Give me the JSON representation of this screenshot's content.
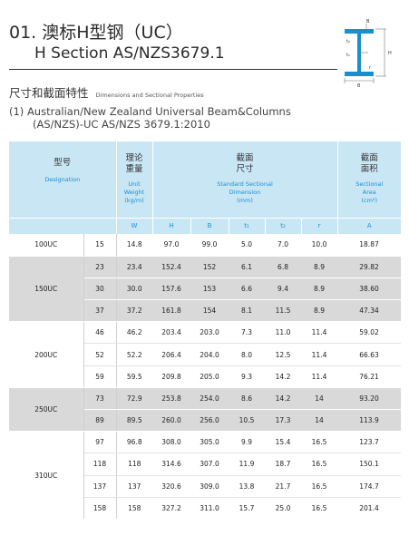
{
  "title": {
    "line1": "01. 澳标H型钢（UC）",
    "line2": "H Section   AS/NZS3679.1"
  },
  "diagram": {
    "labels": [
      "B",
      "t₂",
      "t₁",
      "H",
      "r",
      "B"
    ]
  },
  "subheading": {
    "zh": "尺寸和截面特性",
    "en": "Dimensions and Sectional Properties"
  },
  "standard": {
    "line1": "(1) Australian/New Zealand Universal Beam&Columns",
    "line2": "(AS/NZS)-UC  AS/NZS 3679.1:2010"
  },
  "table": {
    "headers": {
      "designation": {
        "zh": "型号",
        "en": "Designation"
      },
      "weight": {
        "zh1": "理论",
        "zh2": "重量",
        "en1": "Unit",
        "en2": "Weight",
        "en3": "(kg/m)"
      },
      "dimension": {
        "zh1": "截面",
        "zh2": "尺寸",
        "en1": "Standard Sectional",
        "en2": "Dimension",
        "en3": "(mm)"
      },
      "area": {
        "zh1": "截面",
        "zh2": "面积",
        "en1": "Sectional",
        "en2": "Area",
        "en3": "(cm²)"
      }
    },
    "units": [
      "W",
      "H",
      "B",
      "t₁",
      "t₂",
      "r",
      "A"
    ],
    "groups": [
      {
        "name": "100UC",
        "shade": "white",
        "rows": [
          [
            "15",
            "14.8",
            "97.0",
            "99.0",
            "5.0",
            "7.0",
            "10.0",
            "18.87"
          ]
        ]
      },
      {
        "name": "150UC",
        "shade": "grey",
        "rows": [
          [
            "23",
            "23.4",
            "152.4",
            "152",
            "6.1",
            "6.8",
            "8.9",
            "29.82"
          ],
          [
            "30",
            "30.0",
            "157.6",
            "153",
            "6.6",
            "9.4",
            "8.9",
            "38.60"
          ],
          [
            "37",
            "37.2",
            "161.8",
            "154",
            "8.1",
            "11.5",
            "8.9",
            "47.34"
          ]
        ]
      },
      {
        "name": "200UC",
        "shade": "white",
        "rows": [
          [
            "46",
            "46.2",
            "203.4",
            "203.0",
            "7.3",
            "11.0",
            "11.4",
            "59.02"
          ],
          [
            "52",
            "52.2",
            "206.4",
            "204.0",
            "8.0",
            "12.5",
            "11.4",
            "66.63"
          ],
          [
            "59",
            "59.5",
            "209.8",
            "205.0",
            "9.3",
            "14.2",
            "11.4",
            "76.21"
          ]
        ]
      },
      {
        "name": "250UC",
        "shade": "grey",
        "rows": [
          [
            "73",
            "72.9",
            "253.8",
            "254.0",
            "8.6",
            "14.2",
            "14",
            "93.20"
          ],
          [
            "89",
            "89.5",
            "260.0",
            "256.0",
            "10.5",
            "17.3",
            "14",
            "113.9"
          ]
        ]
      },
      {
        "name": "310UC",
        "shade": "white",
        "rows": [
          [
            "97",
            "96.8",
            "308.0",
            "305.0",
            "9.9",
            "15.4",
            "16.5",
            "123.7"
          ],
          [
            "118",
            "118",
            "314.6",
            "307.0",
            "11.9",
            "18.7",
            "16.5",
            "150.1"
          ],
          [
            "137",
            "137",
            "320.6",
            "309.0",
            "13.8",
            "21.7",
            "16.5",
            "174.7"
          ],
          [
            "158",
            "158",
            "327.2",
            "311.0",
            "15.7",
            "25.0",
            "16.5",
            "201.4"
          ]
        ]
      }
    ]
  }
}
